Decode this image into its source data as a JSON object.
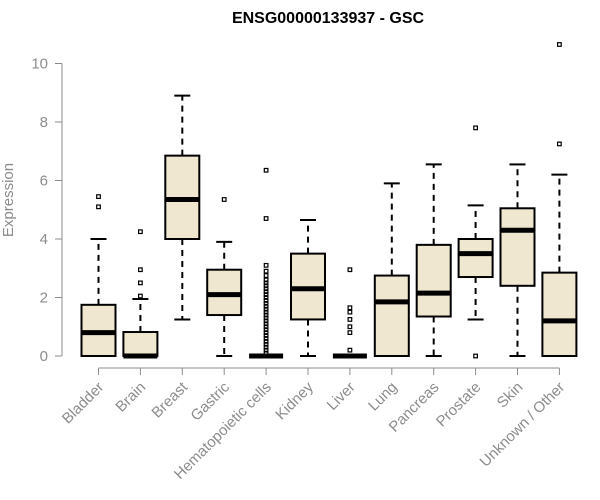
{
  "chart_data": {
    "type": "boxplot",
    "title": "ENSG00000133937 - GSC",
    "ylabel": "Expression",
    "xlabel": "",
    "ylim": [
      0,
      10.6
    ],
    "yticks": [
      0,
      2,
      4,
      6,
      8,
      10
    ],
    "box_color": "#efe7d0",
    "categories": [
      "Bladder",
      "Brain",
      "Breast",
      "Gastric",
      "Hematopoietic cells",
      "Kidney",
      "Liver",
      "Lung",
      "Pancreas",
      "Prostate",
      "Skin",
      "Unknown / Other"
    ],
    "boxes": [
      {
        "min": 0,
        "q1": 0,
        "median": 0.8,
        "q3": 1.75,
        "max": 4.0,
        "outliers": [
          5.1,
          5.45
        ]
      },
      {
        "min": 0,
        "q1": 0,
        "median": 0.0,
        "q3": 0.82,
        "max": 1.95,
        "outliers": [
          2.05,
          2.5,
          2.95,
          4.25
        ]
      },
      {
        "min": 1.25,
        "q1": 4.0,
        "median": 5.35,
        "q3": 6.85,
        "max": 8.9,
        "outliers": []
      },
      {
        "min": 0,
        "q1": 1.4,
        "median": 2.1,
        "q3": 2.95,
        "max": 3.9,
        "outliers": [
          5.35
        ]
      },
      {
        "min": 0,
        "q1": 0,
        "median": 0.0,
        "q3": 0.0,
        "max": 0.0,
        "outliers": [
          0.1,
          0.2,
          0.3,
          0.4,
          0.5,
          0.6,
          0.7,
          0.8,
          0.9,
          1.0,
          1.1,
          1.2,
          1.3,
          1.4,
          1.5,
          1.6,
          1.7,
          1.8,
          1.9,
          2.0,
          2.1,
          2.2,
          2.3,
          2.4,
          2.5,
          2.6,
          2.75,
          2.9,
          3.1,
          4.7,
          6.35
        ]
      },
      {
        "min": 0,
        "q1": 1.25,
        "median": 2.3,
        "q3": 3.5,
        "max": 4.65,
        "outliers": []
      },
      {
        "min": 0,
        "q1": 0,
        "median": 0.0,
        "q3": 0.0,
        "max": 0.0,
        "outliers": [
          0.2,
          0.8,
          1.0,
          1.25,
          1.5,
          1.65,
          2.95
        ]
      },
      {
        "min": 0,
        "q1": 0,
        "median": 1.85,
        "q3": 2.75,
        "max": 5.9,
        "outliers": []
      },
      {
        "min": 0,
        "q1": 1.35,
        "median": 2.15,
        "q3": 3.8,
        "max": 6.55,
        "outliers": []
      },
      {
        "min": 1.25,
        "q1": 2.7,
        "median": 3.5,
        "q3": 4.0,
        "max": 5.15,
        "outliers": [
          0.0,
          7.8
        ]
      },
      {
        "min": 0,
        "q1": 2.4,
        "median": 4.3,
        "q3": 5.05,
        "max": 6.55,
        "outliers": []
      },
      {
        "min": 0,
        "q1": 0,
        "median": 1.2,
        "q3": 2.85,
        "max": 6.2,
        "outliers": [
          7.25,
          10.65
        ]
      }
    ]
  }
}
